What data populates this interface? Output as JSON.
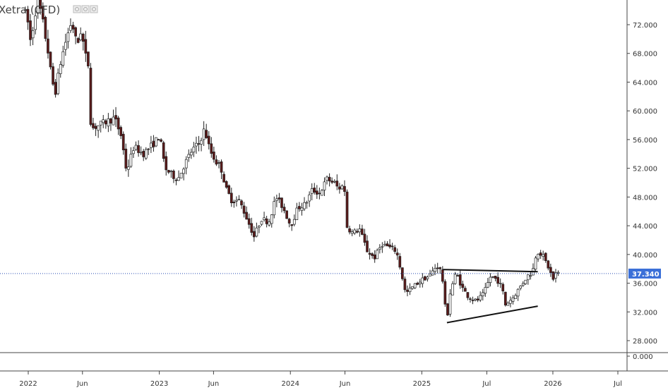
{
  "chart_data": {
    "type": "candlestick",
    "title": "Xetra (CFD)",
    "last_price": 37.34,
    "last_price_label": "37.340",
    "y_ticks": [
      {
        "value": 72,
        "label": "72.000"
      },
      {
        "value": 68,
        "label": "68.000"
      },
      {
        "value": 64,
        "label": "64.000"
      },
      {
        "value": 60,
        "label": "60.000"
      },
      {
        "value": 56,
        "label": "56.000"
      },
      {
        "value": 52,
        "label": "52.000"
      },
      {
        "value": 48,
        "label": "48.000"
      },
      {
        "value": 44,
        "label": "44.000"
      },
      {
        "value": 40,
        "label": "40.000"
      },
      {
        "value": 36,
        "label": "36.000"
      },
      {
        "value": 32,
        "label": "32.000"
      },
      {
        "value": 28,
        "label": "28.000"
      }
    ],
    "zero_tick": {
      "value": 0,
      "label": "0.000"
    },
    "x_ticks": [
      {
        "date": "2022-01-01",
        "label": "2022"
      },
      {
        "date": "2022-06-01",
        "label": "Jun"
      },
      {
        "date": "2023-01-01",
        "label": "2023"
      },
      {
        "date": "2023-06-01",
        "label": "Jun"
      },
      {
        "date": "2024-01-01",
        "label": "2024"
      },
      {
        "date": "2024-06-01",
        "label": "Jun"
      },
      {
        "date": "2025-01-01",
        "label": "2025"
      },
      {
        "date": "2025-07-01",
        "label": "Jul"
      },
      {
        "date": "2026-01-01",
        "label": "2026"
      },
      {
        "date": "2026-07-01",
        "label": "Jul"
      }
    ],
    "price_path": [
      [
        "2021-12-20",
        74.5
      ],
      [
        "2022-01-05",
        72.0
      ],
      [
        "2022-01-12",
        69.0
      ],
      [
        "2022-01-20",
        73.0
      ],
      [
        "2022-02-01",
        75.5
      ],
      [
        "2022-02-15",
        72.0
      ],
      [
        "2022-03-01",
        68.0
      ],
      [
        "2022-03-10",
        64.5
      ],
      [
        "2022-03-20",
        62.5
      ],
      [
        "2022-04-05",
        67.0
      ],
      [
        "2022-04-20",
        70.0
      ],
      [
        "2022-05-05",
        72.5
      ],
      [
        "2022-05-20",
        69.0
      ],
      [
        "2022-06-01",
        71.5
      ],
      [
        "2022-06-10",
        68.0
      ],
      [
        "2022-06-20",
        66.5
      ],
      [
        "2022-06-28",
        57.5
      ],
      [
        "2022-07-20",
        58.0
      ],
      [
        "2022-08-10",
        58.5
      ],
      [
        "2022-09-01",
        59.0
      ],
      [
        "2022-09-20",
        56.5
      ],
      [
        "2022-10-05",
        51.5
      ],
      [
        "2022-10-25",
        55.0
      ],
      [
        "2022-11-20",
        54.0
      ],
      [
        "2022-12-20",
        55.5
      ],
      [
        "2023-01-05",
        56.5
      ],
      [
        "2023-01-20",
        52.0
      ],
      [
        "2023-02-10",
        51.0
      ],
      [
        "2023-02-25",
        50.5
      ],
      [
        "2023-03-15",
        52.5
      ],
      [
        "2023-04-05",
        54.5
      ],
      [
        "2023-04-25",
        55.5
      ],
      [
        "2023-05-10",
        57.5
      ],
      [
        "2023-05-25",
        54.5
      ],
      [
        "2023-06-10",
        53.0
      ],
      [
        "2023-06-25",
        52.0
      ],
      [
        "2023-07-10",
        49.0
      ],
      [
        "2023-07-25",
        47.5
      ],
      [
        "2023-08-15",
        47.5
      ],
      [
        "2023-09-05",
        45.0
      ],
      [
        "2023-09-25",
        42.5
      ],
      [
        "2023-10-15",
        45.0
      ],
      [
        "2023-11-05",
        44.5
      ],
      [
        "2023-11-25",
        48.0
      ],
      [
        "2023-12-15",
        46.5
      ],
      [
        "2024-01-05",
        44.0
      ],
      [
        "2024-01-25",
        46.5
      ],
      [
        "2024-02-15",
        47.0
      ],
      [
        "2024-03-05",
        49.0
      ],
      [
        "2024-03-25",
        48.5
      ],
      [
        "2024-04-15",
        50.5
      ],
      [
        "2024-05-05",
        50.0
      ],
      [
        "2024-05-20",
        49.0
      ],
      [
        "2024-06-01",
        50.5
      ],
      [
        "2024-06-08",
        44.0
      ],
      [
        "2024-06-25",
        43.0
      ],
      [
        "2024-07-15",
        43.5
      ],
      [
        "2024-08-05",
        40.5
      ],
      [
        "2024-08-25",
        39.5
      ],
      [
        "2024-09-15",
        41.5
      ],
      [
        "2024-10-05",
        41.0
      ],
      [
        "2024-10-25",
        40.5
      ],
      [
        "2024-11-08",
        37.5
      ],
      [
        "2024-11-20",
        34.5
      ],
      [
        "2024-12-10",
        35.5
      ],
      [
        "2025-01-05",
        36.5
      ],
      [
        "2025-01-25",
        37.0
      ],
      [
        "2025-02-15",
        38.5
      ],
      [
        "2025-03-01",
        37.5
      ],
      [
        "2025-03-08",
        33.5
      ],
      [
        "2025-03-15",
        31.0
      ],
      [
        "2025-03-25",
        35.0
      ],
      [
        "2025-04-10",
        37.5
      ],
      [
        "2025-04-25",
        35.5
      ],
      [
        "2025-05-15",
        34.0
      ],
      [
        "2025-06-05",
        33.5
      ],
      [
        "2025-06-25",
        34.5
      ],
      [
        "2025-07-15",
        37.0
      ],
      [
        "2025-08-01",
        36.5
      ],
      [
        "2025-08-15",
        35.5
      ],
      [
        "2025-08-25",
        33.0
      ],
      [
        "2025-09-15",
        34.0
      ],
      [
        "2025-10-05",
        35.5
      ],
      [
        "2025-10-25",
        37.0
      ],
      [
        "2025-11-08",
        37.5
      ],
      [
        "2025-11-20",
        40.5
      ],
      [
        "2025-12-05",
        40.0
      ],
      [
        "2025-12-20",
        38.5
      ],
      [
        "2026-01-05",
        36.5
      ],
      [
        "2026-01-12",
        37.34
      ]
    ],
    "resistance_line": {
      "from": [
        "2025-03-01",
        37.9
      ],
      "to": [
        "2025-11-20",
        37.6
      ]
    },
    "support_line": {
      "from": [
        "2025-03-12",
        30.5
      ],
      "to": [
        "2025-11-20",
        32.8
      ]
    },
    "grid": false
  }
}
